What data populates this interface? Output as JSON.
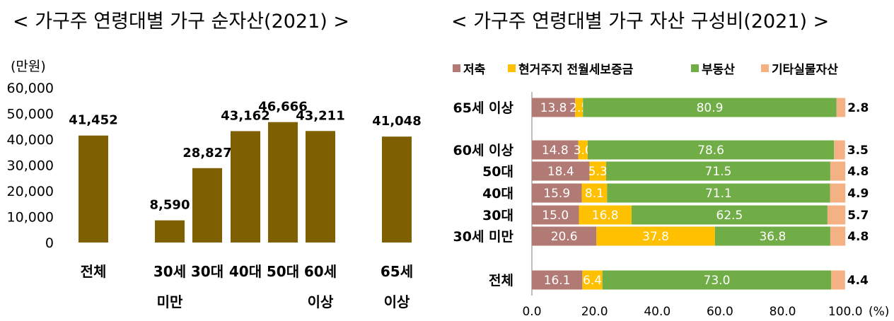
{
  "chart_data": [
    {
      "type": "bar",
      "title": "< 가구주 연령대별 가구 순자산(2021) >",
      "unit": "(만원)",
      "yticks": [
        "60,000",
        "50,000",
        "40,000",
        "30,000",
        "20,000",
        "10,000",
        "0"
      ],
      "ylim": [
        0,
        60000
      ],
      "categories": [
        [
          "전체"
        ],
        [
          "30세",
          "미만"
        ],
        [
          "30대"
        ],
        [
          "40대"
        ],
        [
          "50대"
        ],
        [
          "60세",
          "이상"
        ],
        [
          "65세",
          "이상"
        ]
      ],
      "values": [
        41452,
        8590,
        28827,
        43162,
        46666,
        43211,
        41048
      ],
      "value_labels": [
        "41,452",
        "8,590",
        "28,827",
        "43,162",
        "46,666",
        "43,211",
        "41,048"
      ],
      "bar_color": "#7f6000",
      "grid": false
    },
    {
      "type": "bar",
      "orientation": "horizontal-stacked",
      "title": "< 가구주 연령대별 가구 자산 구성비(2021) >",
      "legend_position": "top",
      "xlim": [
        0,
        100
      ],
      "xticks": [
        "0.0",
        "20.0",
        "40.0",
        "60.0",
        "80.0",
        "100.0"
      ],
      "x_unit": "(%)",
      "categories": [
        "65세 이상",
        "60세 이상",
        "50대",
        "40대",
        "30대",
        "30세 미만",
        "전체"
      ],
      "series": [
        {
          "name": "저축",
          "color": "#b17a74",
          "values": [
            13.8,
            14.8,
            18.4,
            15.9,
            15.0,
            20.6,
            16.1
          ],
          "labels": [
            "13.8",
            "14.8",
            "18.4",
            "15.9",
            "15.0",
            "20.6",
            "16.1"
          ]
        },
        {
          "name": "현거주지 전월세보증금",
          "color": "#ffc000",
          "values": [
            2.5,
            3.0,
            5.3,
            8.1,
            16.8,
            37.8,
            6.4
          ],
          "labels": [
            "2.5",
            "3.0",
            "5.3",
            "8.1",
            "16.8",
            "37.8",
            "6.4"
          ]
        },
        {
          "name": "부동산",
          "color": "#70ad47",
          "values": [
            80.9,
            78.6,
            71.5,
            71.1,
            62.5,
            36.8,
            73.0
          ],
          "labels": [
            "80.9",
            "78.6",
            "71.5",
            "71.1",
            "62.5",
            "36.8",
            "73.0"
          ]
        },
        {
          "name": "기타실물자산",
          "color": "#f4b183",
          "values": [
            2.8,
            3.5,
            4.8,
            4.9,
            5.7,
            4.8,
            4.4
          ],
          "labels": [
            "2.8",
            "3.5",
            "4.8",
            "4.9",
            "5.7",
            "4.8",
            "4.4"
          ]
        }
      ]
    }
  ]
}
